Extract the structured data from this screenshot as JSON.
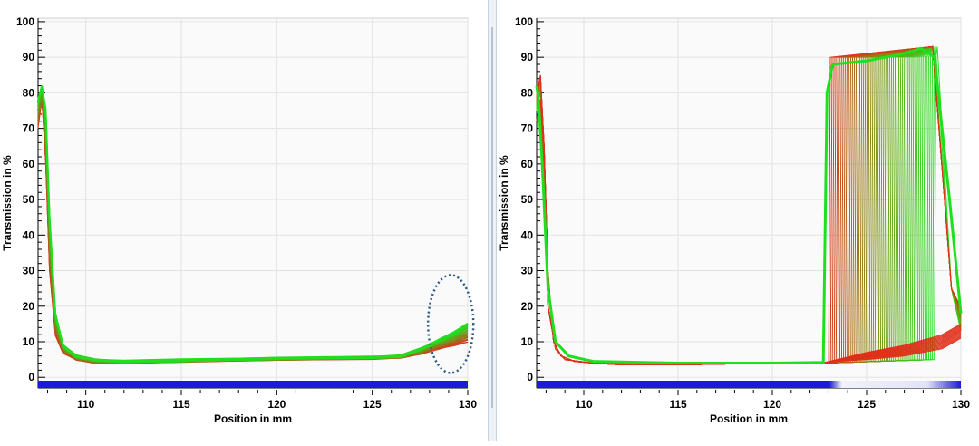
{
  "chart_data": [
    {
      "type": "line",
      "title": "",
      "xlabel": "Position in mm",
      "ylabel": "Transmission in %",
      "xlim": [
        107.5,
        130
      ],
      "ylim": [
        -3,
        101
      ],
      "x_ticks": [
        110,
        115,
        120,
        125,
        130
      ],
      "y_ticks": [
        0,
        10,
        20,
        30,
        40,
        50,
        60,
        70,
        80,
        90,
        100
      ],
      "grid": true,
      "legend": "none",
      "colors": {
        "early": "#e0301a",
        "late": "#1fe01f",
        "bar_blue": "#1c1cd6"
      },
      "series_count": 30,
      "series_first": {
        "x": [
          107.5,
          107.7,
          107.9,
          108.1,
          108.4,
          108.8,
          109.5,
          110.5,
          112,
          115,
          120,
          125,
          126.5,
          127.5,
          128.5,
          129.3,
          130
        ],
        "y": [
          70,
          78,
          60,
          30,
          12,
          7,
          5,
          4,
          4,
          4.5,
          5,
          5.3,
          5.6,
          6.5,
          8,
          9,
          10
        ]
      },
      "series_last": {
        "x": [
          107.5,
          107.7,
          107.9,
          108.1,
          108.4,
          108.8,
          109.5,
          110.5,
          112,
          115,
          120,
          125,
          126.5,
          127.5,
          128.5,
          129.3,
          130
        ],
        "y": [
          78,
          82,
          75,
          45,
          18,
          9,
          6,
          5,
          4.5,
          4.8,
          5.3,
          5.6,
          6,
          8,
          10.5,
          12.5,
          15
        ]
      },
      "annotation": "dotted-ellipse-highlight",
      "annotation_x": [
        128.5,
        130
      ],
      "annotation_y": [
        0,
        30
      ]
    },
    {
      "type": "line",
      "title": "",
      "xlabel": "Position in mm",
      "ylabel": "Transmission in %",
      "xlim": [
        107.5,
        130
      ],
      "ylim": [
        -3,
        101
      ],
      "x_ticks": [
        110,
        115,
        120,
        125,
        130
      ],
      "y_ticks": [
        0,
        10,
        20,
        30,
        40,
        50,
        60,
        70,
        80,
        90,
        100
      ],
      "grid": true,
      "legend": "none",
      "colors": {
        "early": "#e0301a",
        "late": "#1fe01f",
        "bar_blue": "#1c1cd6"
      },
      "series_count": 60,
      "baseline": {
        "x": [
          107.5,
          107.7,
          107.9,
          108.1,
          108.4,
          108.8,
          109.5,
          110.5,
          112,
          115,
          120,
          122.8
        ],
        "y": [
          75,
          80,
          60,
          25,
          10,
          6,
          4.5,
          4,
          3.5,
          3.5,
          4,
          4
        ]
      },
      "step_up_x_range": [
        122.8,
        128.6
      ],
      "plateau_y": [
        88,
        92
      ],
      "drop_x": 129.5,
      "final_y_range": [
        13,
        20
      ]
    }
  ]
}
